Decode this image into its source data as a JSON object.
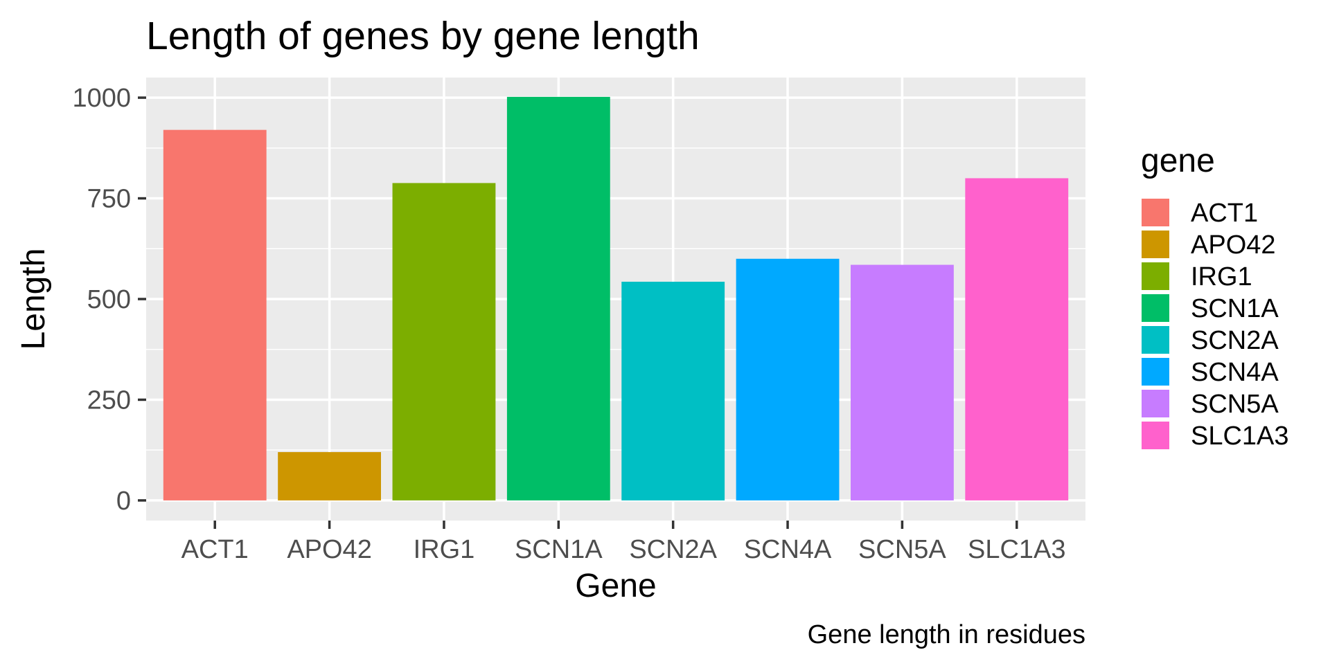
{
  "chart_data": {
    "type": "bar",
    "title": "Length of genes by gene length",
    "xlabel": "Gene",
    "ylabel": "Length",
    "caption": "Gene length in residues",
    "categories": [
      "ACT1",
      "APO42",
      "IRG1",
      "SCN1A",
      "SCN2A",
      "SCN4A",
      "SCN5A",
      "SLC1A3"
    ],
    "values": [
      920,
      120,
      788,
      1002,
      543,
      600,
      585,
      800
    ],
    "colors": [
      "#F8766D",
      "#CD9600",
      "#7CAE00",
      "#00BE67",
      "#00BFC4",
      "#00A9FF",
      "#C77CFF",
      "#FF61CC"
    ],
    "ylim": [
      -50,
      1050
    ],
    "yticks": [
      0,
      250,
      500,
      750,
      1000
    ],
    "yticklabels": [
      "0",
      "250",
      "500",
      "750",
      "1000"
    ],
    "grid": true,
    "panel_background": "#EBEBEB",
    "legend": {
      "title": "gene",
      "placement": "right",
      "items": [
        "ACT1",
        "APO42",
        "IRG1",
        "SCN1A",
        "SCN2A",
        "SCN4A",
        "SCN5A",
        "SLC1A3"
      ]
    }
  }
}
